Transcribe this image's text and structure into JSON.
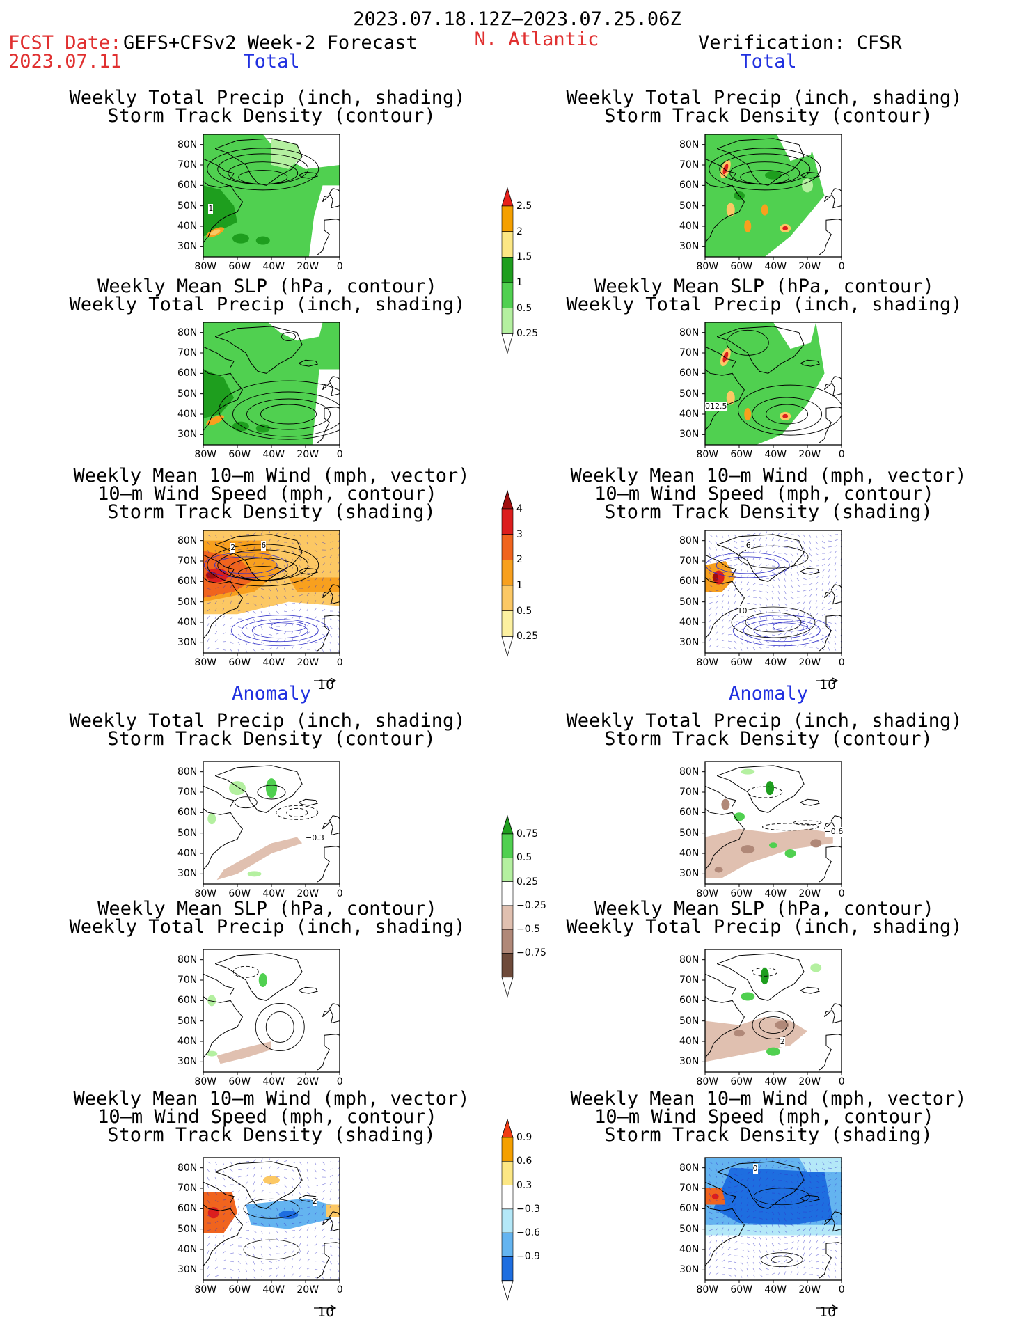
{
  "header": {
    "period": "2023.07.18.12Z–2023.07.25.06Z",
    "region": "N. Atlantic",
    "fcst_label": "FCST Date:",
    "model": "GEFS+CFSv2 Week-2 Forecast",
    "fcst_date": "2023.07.11",
    "verification": "Verification: CFSR"
  },
  "sections": {
    "total": "Total",
    "anomaly": "Anomaly"
  },
  "titles": {
    "p1a": "Weekly Total Precip (inch, shading)",
    "p1b": "Storm Track Density (contour)",
    "p2a": "Weekly Mean SLP (hPa, contour)",
    "p2b": "Weekly Total Precip (inch, shading)",
    "p3a": "Weekly Mean 10–m Wind (mph, vector)",
    "p3b": "10–m Wind Speed (mph, contour)",
    "p3c": "Storm Track Density (shading)"
  },
  "axes": {
    "lat": [
      "80N",
      "70N",
      "60N",
      "50N",
      "40N",
      "30N"
    ],
    "lon": [
      "80W",
      "60W",
      "40W",
      "20W",
      "0"
    ]
  },
  "vector_ref": "10",
  "colorbars": {
    "precip_total": {
      "labels": [
        "2.5",
        "2",
        "1.5",
        "1",
        "0.5",
        "0.25"
      ],
      "colors": [
        "#e8201a",
        "#f5a000",
        "#fce784",
        "#1e9e1e",
        "#50d050",
        "#b4f0a0"
      ]
    },
    "storm_total": {
      "labels": [
        "4",
        "3",
        "2",
        "1",
        "0.5",
        "0.25"
      ],
      "colors": [
        "#a00e0e",
        "#dc1e1e",
        "#f0641e",
        "#f8a01e",
        "#fcc864",
        "#fcf0a0"
      ]
    },
    "precip_anom": {
      "labels": [
        "0.75",
        "0.5",
        "0.25",
        "−0.25",
        "−0.5",
        "−0.75"
      ],
      "colors": [
        "#1e9e1e",
        "#50d050",
        "#b4f0a0",
        "#ffffff",
        "#e0c0b0",
        "#b08878",
        "#6e4a3a"
      ]
    },
    "storm_anom": {
      "labels": [
        "0.9",
        "0.6",
        "0.3",
        "−0.3",
        "−0.6",
        "−0.9"
      ],
      "colors": [
        "#f03c14",
        "#f5a000",
        "#fce784",
        "#ffffff",
        "#b4e8f8",
        "#64b4f0",
        "#1e6ee0"
      ]
    }
  },
  "contour_labels": {
    "fl1": "1",
    "vl1": "012.5",
    "fl3a": "2",
    "fl3b": "6",
    "vl3a": "6",
    "vl3b": "10",
    "fa1": "−0.3",
    "va1": "−0.6",
    "va2": "2",
    "fa3": "2",
    "va3": "0"
  }
}
